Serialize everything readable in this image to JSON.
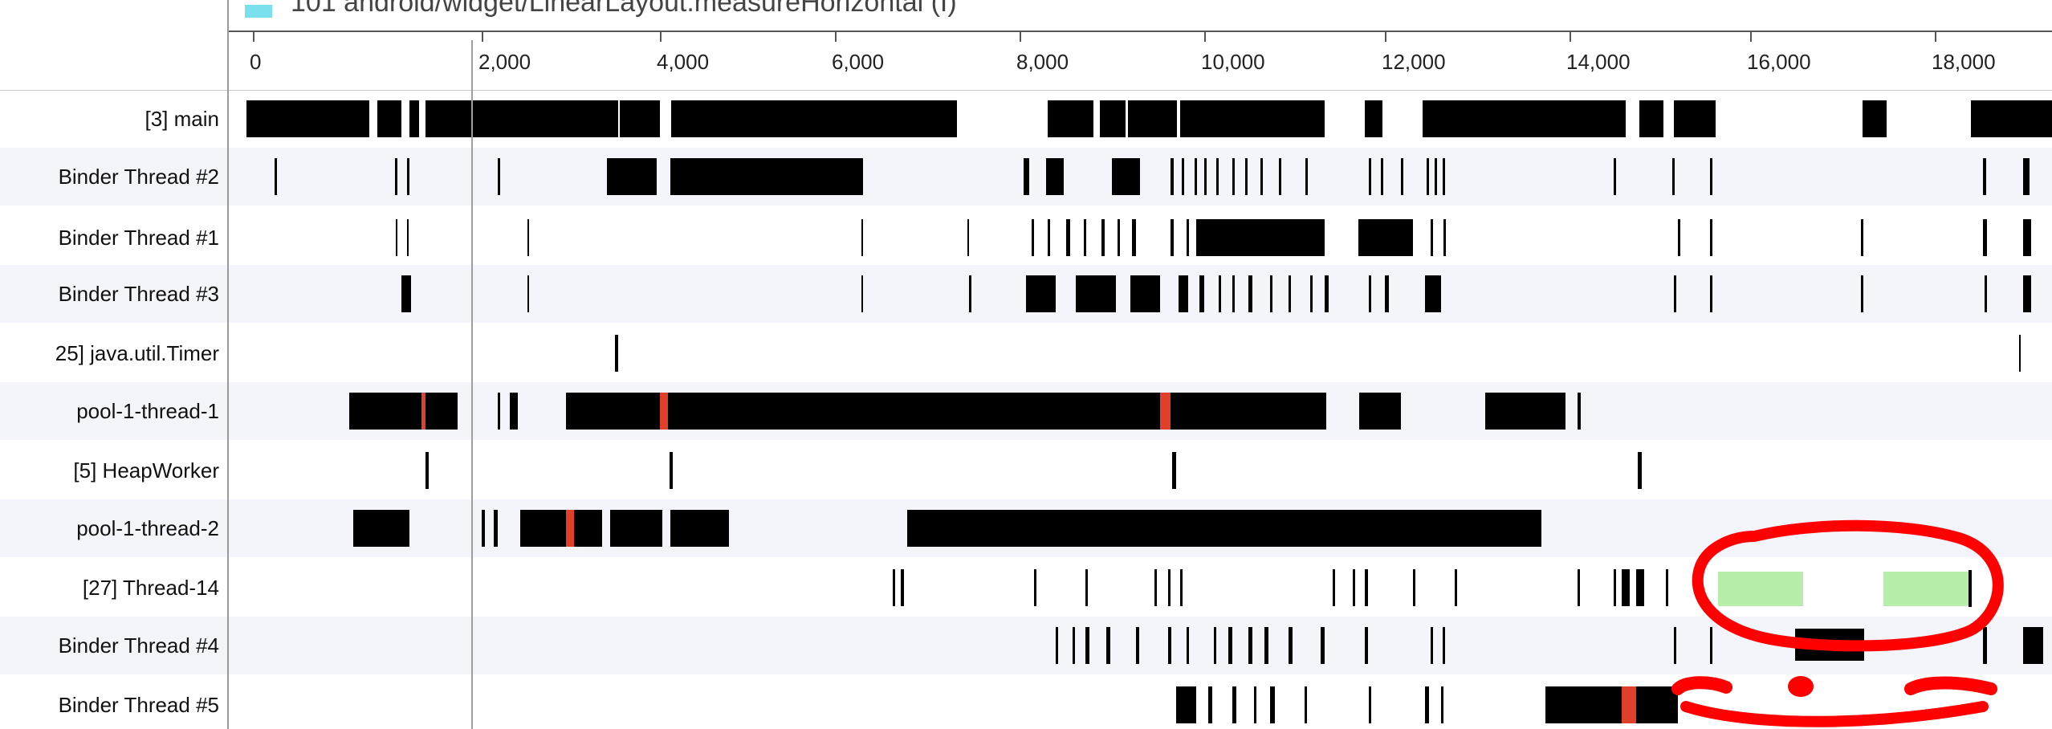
{
  "legend": {
    "text": "101 android/widget/LinearLayout.measureHorizontal (I)",
    "color": "#7be0ee"
  },
  "axis": {
    "ticks": [
      "0",
      "2,000",
      "4,000",
      "6,000",
      "8,000",
      "10,000",
      "12,000",
      "14,000",
      "16,000",
      "18,000"
    ]
  },
  "threads": [
    {
      "label": "[3] main"
    },
    {
      "label": "Binder Thread #2"
    },
    {
      "label": "Binder Thread #1"
    },
    {
      "label": "Binder Thread #3"
    },
    {
      "label": "25] java.util.Timer"
    },
    {
      "label": "pool-1-thread-1"
    },
    {
      "label": "[5] HeapWorker"
    },
    {
      "label": "pool-1-thread-2"
    },
    {
      "label": "[27] Thread-14"
    },
    {
      "label": "Binder Thread #4"
    },
    {
      "label": "Binder Thread #5"
    }
  ],
  "colors": {
    "segment": "#000000",
    "hot": "#e0402a",
    "highlight": "#b6eeaa",
    "annotation": "#ff0000"
  }
}
